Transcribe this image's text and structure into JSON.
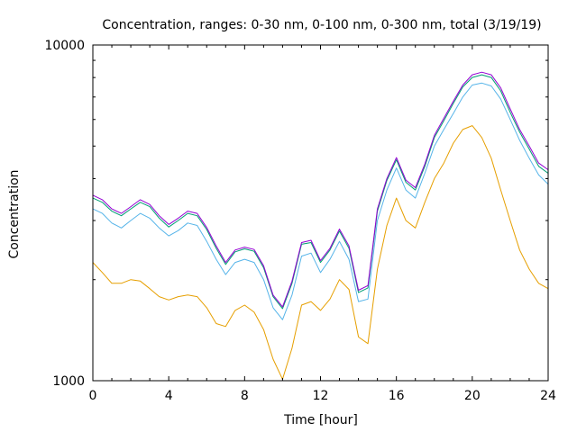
{
  "chart_data": {
    "type": "line",
    "title": "Concentration, ranges: 0-30 nm, 0-100 nm, 0-300 nm, total (3/19/19)",
    "xlabel": "Time [hour]",
    "ylabel": "Concentration",
    "xlim": [
      0,
      24
    ],
    "ylim": [
      1000,
      10000
    ],
    "yscale": "log",
    "grid": false,
    "legend": "none",
    "x_ticks": [
      0,
      4,
      8,
      12,
      16,
      20,
      24
    ],
    "x_tick_labels": [
      "0",
      "4",
      "8",
      "12",
      "16",
      "20",
      "24"
    ],
    "y_tick_labels": [
      {
        "value": 1000,
        "label": "1000"
      },
      {
        "value": 10000,
        "label": "10000"
      }
    ],
    "x": [
      0,
      0.5,
      1,
      1.5,
      2,
      2.5,
      3,
      3.5,
      4,
      4.5,
      5,
      5.5,
      6,
      6.5,
      7,
      7.5,
      8,
      8.5,
      9,
      9.5,
      10,
      10.5,
      11,
      11.5,
      12,
      12.5,
      13,
      13.5,
      14,
      14.5,
      15,
      15.5,
      16,
      16.5,
      17,
      17.5,
      18,
      18.5,
      19,
      19.5,
      20,
      20.5,
      21,
      21.5,
      22,
      22.5,
      23,
      23.5,
      24
    ],
    "series": [
      {
        "name": "0-30 nm",
        "color": "#e69f00",
        "values": [
          2250,
          2100,
          1950,
          1950,
          2000,
          1980,
          1880,
          1780,
          1740,
          1780,
          1800,
          1780,
          1650,
          1480,
          1450,
          1620,
          1680,
          1600,
          1420,
          1160,
          1010,
          1250,
          1680,
          1720,
          1620,
          1750,
          2000,
          1870,
          1350,
          1290,
          2150,
          2900,
          3500,
          3000,
          2850,
          3400,
          4000,
          4450,
          5100,
          5600,
          5750,
          5300,
          4600,
          3700,
          3000,
          2450,
          2150,
          1950,
          1880
        ]
      },
      {
        "name": "0-100 nm",
        "color": "#56b4e9",
        "values": [
          3250,
          3150,
          2950,
          2850,
          3000,
          3150,
          3050,
          2850,
          2700,
          2800,
          2950,
          2900,
          2600,
          2300,
          2070,
          2250,
          2300,
          2250,
          2000,
          1650,
          1520,
          1800,
          2350,
          2400,
          2100,
          2300,
          2600,
          2300,
          1720,
          1750,
          3000,
          3700,
          4300,
          3700,
          3500,
          4150,
          5000,
          5600,
          6250,
          7000,
          7600,
          7700,
          7550,
          6900,
          6000,
          5200,
          4600,
          4100,
          3850
        ]
      },
      {
        "name": "0-300 nm",
        "color": "#009e73",
        "values": [
          3500,
          3400,
          3200,
          3100,
          3250,
          3400,
          3300,
          3050,
          2870,
          3000,
          3150,
          3100,
          2820,
          2480,
          2220,
          2420,
          2470,
          2430,
          2170,
          1780,
          1640,
          1950,
          2550,
          2580,
          2250,
          2450,
          2790,
          2480,
          1830,
          1890,
          3200,
          3950,
          4550,
          3900,
          3700,
          4350,
          5300,
          5950,
          6700,
          7500,
          8000,
          8150,
          8000,
          7300,
          6300,
          5500,
          4900,
          4350,
          4150
        ]
      },
      {
        "name": "total",
        "color": "#9400d3",
        "values": [
          3570,
          3460,
          3250,
          3150,
          3300,
          3460,
          3350,
          3100,
          2920,
          3050,
          3200,
          3150,
          2860,
          2520,
          2250,
          2450,
          2500,
          2460,
          2200,
          1800,
          1660,
          1980,
          2580,
          2620,
          2280,
          2480,
          2830,
          2520,
          1860,
          1920,
          3250,
          4000,
          4620,
          3960,
          3760,
          4420,
          5380,
          6050,
          6800,
          7600,
          8150,
          8300,
          8150,
          7450,
          6450,
          5600,
          5000,
          4450,
          4250
        ]
      }
    ]
  }
}
